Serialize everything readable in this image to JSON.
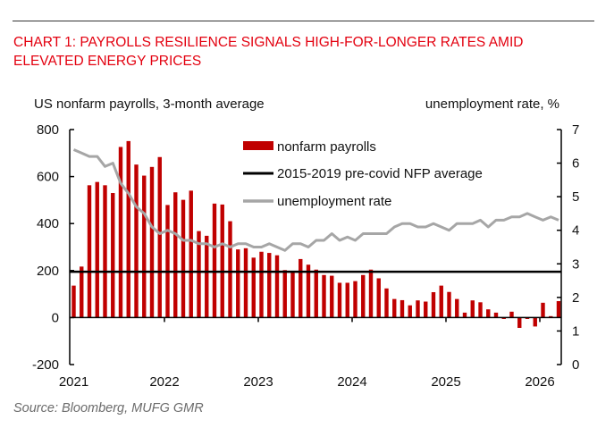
{
  "title_line1": "CHART 1: PAYROLLS RESILIENCE SIGNALS HIGH-FOR-LONGER RATES AMID",
  "title_line2": "ELEVATED ENERGY PRICES",
  "source": "Source: Bloomberg, MUFG GMR",
  "colors": {
    "title": "#e3000f",
    "bars": "#c00000",
    "average": "#000000",
    "unemployment": "#a6a6a6"
  },
  "chart_data": {
    "type": "bar+line",
    "ylabel_left": "US nonfarm payrolls, 3-month average",
    "ylabel_right": "unemployment rate, %",
    "ylim_left": [
      -200,
      800
    ],
    "yticks_left": [
      "800",
      "600",
      "400",
      "200",
      "0",
      "-200"
    ],
    "ylim_right": [
      0,
      7
    ],
    "yticks_right": [
      "7",
      "6",
      "5",
      "4",
      "3",
      "2",
      "1",
      "0"
    ],
    "xticks": [
      "2021",
      "2022",
      "2023",
      "2024",
      "2025",
      "2026"
    ],
    "x_start": "2021-01",
    "x_end": "2026-03",
    "frequency": "monthly",
    "legend": [
      "nonfarm payrolls",
      "2015-2019 pre-covid NFP average",
      "unemployment rate"
    ],
    "legend_position": "top-center",
    "nonfarm_payrolls": [
      136,
      217,
      563,
      577,
      563,
      530,
      726,
      751,
      651,
      604,
      641,
      683,
      479,
      533,
      501,
      540,
      368,
      348,
      485,
      481,
      410,
      290,
      295,
      255,
      280,
      275,
      265,
      202,
      195,
      249,
      225,
      204,
      181,
      178,
      148,
      148,
      155,
      181,
      204,
      167,
      124,
      79,
      74,
      52,
      73,
      68,
      108,
      136,
      109,
      79,
      21,
      73,
      65,
      35,
      21,
      -6,
      25,
      -44,
      -6,
      -38,
      63,
      6,
      70
    ],
    "pre_covid_average": 195,
    "unemployment_rate": [
      6.4,
      6.3,
      6.2,
      6.2,
      5.9,
      6.0,
      5.4,
      5.1,
      4.7,
      4.5,
      4.1,
      3.9,
      4.0,
      3.9,
      3.7,
      3.7,
      3.6,
      3.6,
      3.5,
      3.6,
      3.5,
      3.6,
      3.6,
      3.5,
      3.5,
      3.6,
      3.5,
      3.4,
      3.6,
      3.6,
      3.5,
      3.7,
      3.7,
      3.9,
      3.7,
      3.8,
      3.7,
      3.9,
      3.9,
      3.9,
      3.9,
      4.1,
      4.2,
      4.2,
      4.1,
      4.1,
      4.2,
      4.1,
      4.0,
      4.2,
      4.2,
      4.2,
      4.3,
      4.1,
      4.3,
      4.3,
      4.4,
      4.4,
      4.5,
      4.4,
      4.3,
      4.4,
      4.3
    ]
  }
}
